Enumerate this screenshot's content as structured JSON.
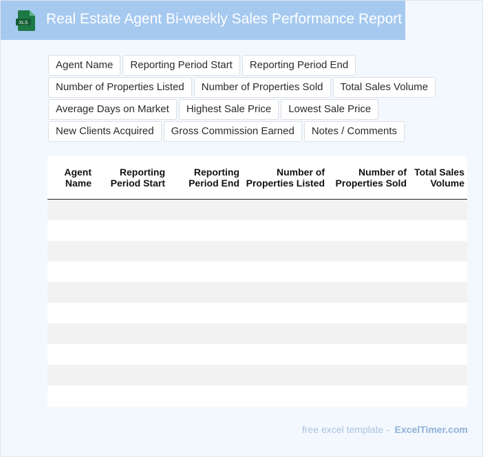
{
  "header": {
    "title": "Real Estate Agent Bi-weekly Sales Performance Report",
    "icon_label": "XLS",
    "bg_color": "#a6c9f0",
    "icon_color": "#1e7a45"
  },
  "tags": [
    [
      "Agent Name",
      "Reporting Period Start",
      "Reporting Period End"
    ],
    [
      "Number of Properties Listed",
      "Number of Properties Sold",
      "Total Sales Volume"
    ],
    [
      "Average Days on Market",
      "Highest Sale Price",
      "Lowest Sale Price"
    ],
    [
      "New Clients Acquired",
      "Gross Commission Earned",
      "Notes / Comments"
    ]
  ],
  "table": {
    "headers": [
      "Agent Name",
      "Reporting Period Start",
      "Reporting Period End",
      "Number of Properties Listed",
      "Number of Properties Sold",
      "Total Sales Volume"
    ],
    "row_count": 10,
    "stripe_color": "#f2f2f2"
  },
  "footer": {
    "prefix": "free excel template -",
    "brand": "ExcelTimer.com"
  }
}
